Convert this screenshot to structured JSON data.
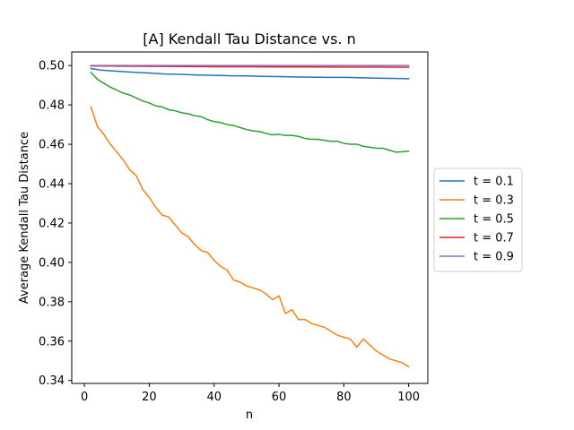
{
  "chart_data": {
    "type": "line",
    "title": "[A] Kendall Tau Distance vs. n",
    "xlabel": "n",
    "ylabel": "Average Kendall Tau Distance",
    "xlim": [
      -3.9,
      105.9
    ],
    "ylim": [
      0.3385,
      0.5069
    ],
    "xticks": [
      0,
      20,
      40,
      60,
      80,
      100
    ],
    "yticks": [
      0.34,
      0.36,
      0.38,
      0.4,
      0.42,
      0.44,
      0.46,
      0.48,
      0.5
    ],
    "ytick_labels": [
      "0.34",
      "0.36",
      "0.38",
      "0.40",
      "0.42",
      "0.44",
      "0.46",
      "0.48",
      "0.50"
    ],
    "grid": false,
    "legend_position": "center-right outside",
    "series": [
      {
        "name": "t = 0.1",
        "color": "#1f77b4",
        "x": [
          2,
          5,
          10,
          15,
          20,
          25,
          30,
          35,
          40,
          45,
          50,
          55,
          60,
          65,
          70,
          75,
          80,
          85,
          90,
          95,
          100
        ],
        "y": [
          0.4985,
          0.4977,
          0.4971,
          0.4966,
          0.4962,
          0.4957,
          0.4955,
          0.4952,
          0.495,
          0.4948,
          0.4947,
          0.4945,
          0.4944,
          0.4942,
          0.4941,
          0.494,
          0.494,
          0.4938,
          0.4936,
          0.4935,
          0.4933
        ]
      },
      {
        "name": "t = 0.3",
        "color": "#ff7f0e",
        "x": [
          2,
          4,
          6,
          8,
          10,
          12,
          14,
          16,
          18,
          20,
          22,
          24,
          26,
          28,
          30,
          32,
          34,
          36,
          38,
          40,
          42,
          44,
          46,
          48,
          50,
          52,
          54,
          56,
          58,
          60,
          62,
          64,
          66,
          68,
          70,
          72,
          74,
          76,
          78,
          80,
          82,
          84,
          86,
          88,
          90,
          92,
          94,
          96,
          98,
          100
        ],
        "y": [
          0.479,
          0.469,
          0.465,
          0.46,
          0.456,
          0.452,
          0.447,
          0.444,
          0.437,
          0.433,
          0.428,
          0.424,
          0.423,
          0.419,
          0.415,
          0.413,
          0.409,
          0.406,
          0.405,
          0.401,
          0.398,
          0.396,
          0.391,
          0.39,
          0.388,
          0.387,
          0.386,
          0.384,
          0.381,
          0.383,
          0.374,
          0.376,
          0.371,
          0.371,
          0.369,
          0.368,
          0.367,
          0.365,
          0.363,
          0.362,
          0.361,
          0.357,
          0.361,
          0.358,
          0.355,
          0.353,
          0.351,
          0.35,
          0.349,
          0.347
        ]
      },
      {
        "name": "t = 0.5",
        "color": "#2ca02c",
        "x": [
          2,
          4,
          6,
          8,
          10,
          12,
          14,
          16,
          18,
          20,
          22,
          24,
          26,
          28,
          30,
          32,
          34,
          36,
          38,
          40,
          42,
          44,
          46,
          48,
          50,
          52,
          54,
          56,
          58,
          60,
          62,
          64,
          66,
          68,
          70,
          72,
          74,
          76,
          78,
          80,
          82,
          84,
          86,
          88,
          90,
          92,
          94,
          96,
          98,
          100
        ],
        "y": [
          0.4965,
          0.493,
          0.491,
          0.489,
          0.4875,
          0.486,
          0.485,
          0.4835,
          0.482,
          0.481,
          0.4795,
          0.479,
          0.4775,
          0.477,
          0.476,
          0.4755,
          0.4745,
          0.474,
          0.4725,
          0.4715,
          0.471,
          0.47,
          0.4695,
          0.4685,
          0.4675,
          0.4668,
          0.4665,
          0.4655,
          0.4648,
          0.465,
          0.4645,
          0.4645,
          0.464,
          0.463,
          0.4625,
          0.4625,
          0.462,
          0.4615,
          0.4615,
          0.4605,
          0.46,
          0.46,
          0.459,
          0.4585,
          0.458,
          0.458,
          0.457,
          0.456,
          0.4562,
          0.4565
        ]
      },
      {
        "name": "t = 0.7",
        "color": "#d62728",
        "x": [
          2,
          10,
          20,
          30,
          40,
          50,
          60,
          70,
          80,
          90,
          100
        ],
        "y": [
          0.4998,
          0.4997,
          0.4996,
          0.4995,
          0.4994,
          0.4994,
          0.4993,
          0.4993,
          0.4992,
          0.4992,
          0.4991
        ]
      },
      {
        "name": "t = 0.9",
        "color": "#9467bd",
        "x": [
          2,
          10,
          20,
          30,
          40,
          50,
          60,
          70,
          80,
          90,
          100
        ],
        "y": [
          0.5,
          0.5,
          0.5,
          0.5,
          0.5,
          0.5,
          0.5,
          0.5,
          0.5,
          0.5,
          0.5
        ]
      }
    ]
  }
}
